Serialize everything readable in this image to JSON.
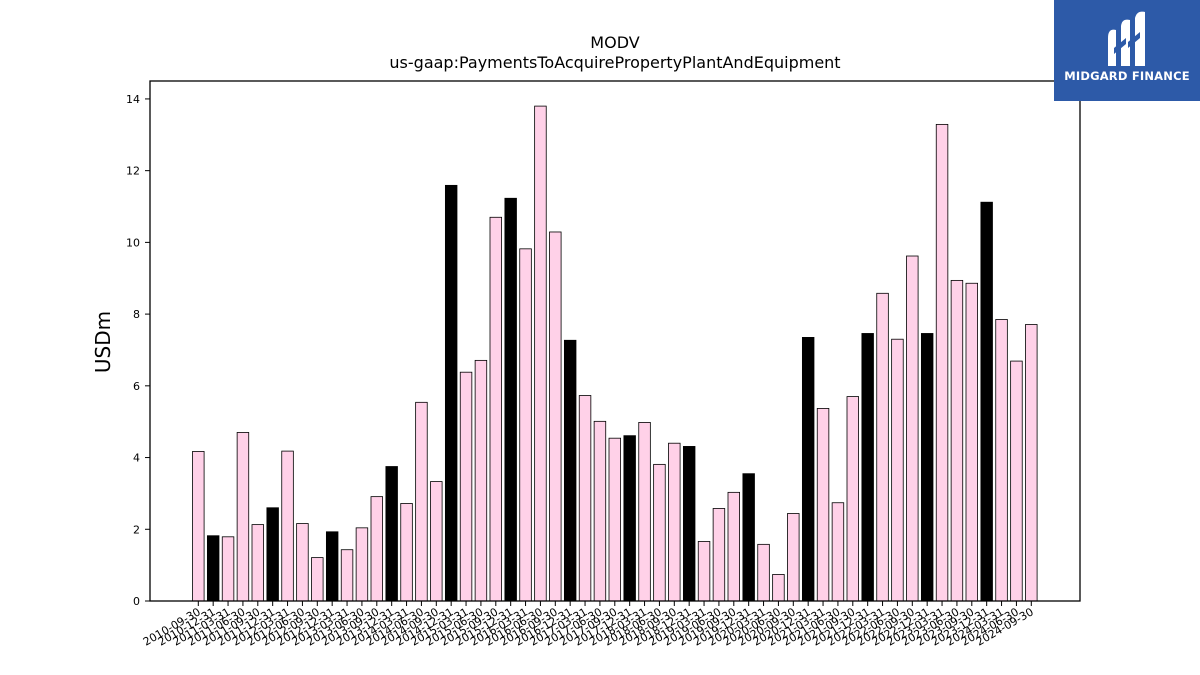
{
  "chart_data": {
    "type": "bar",
    "title": "MODV",
    "subtitle": "us-gaap:PaymentsToAcquirePropertyPlantAndEquipment",
    "xlabel": "",
    "ylabel": "USDm",
    "ylim": [
      0,
      14.5
    ],
    "yticks": [
      0,
      2,
      4,
      6,
      8,
      10,
      12,
      14
    ],
    "grid": false,
    "colors": {
      "quarter": "#ffd1e8",
      "annual": "#000000",
      "edge": "#000000"
    },
    "categories": [
      "2010-09-30",
      "2010-12-31",
      "2011-03-31",
      "2011-06-30",
      "2011-09-30",
      "2011-12-31",
      "2012-03-31",
      "2012-06-30",
      "2012-09-30",
      "2012-12-31",
      "2013-03-31",
      "2013-06-30",
      "2013-09-30",
      "2013-12-31",
      "2014-03-31",
      "2014-06-30",
      "2014-09-30",
      "2014-12-31",
      "2015-03-31",
      "2015-06-30",
      "2015-09-30",
      "2015-12-31",
      "2016-03-31",
      "2016-06-30",
      "2016-09-30",
      "2016-12-31",
      "2017-03-31",
      "2017-06-30",
      "2017-09-30",
      "2017-12-31",
      "2018-03-31",
      "2018-06-30",
      "2018-09-30",
      "2018-12-31",
      "2019-03-31",
      "2019-06-30",
      "2019-09-30",
      "2019-12-31",
      "2020-03-31",
      "2020-06-30",
      "2020-09-30",
      "2020-12-31",
      "2021-03-31",
      "2021-06-30",
      "2021-09-30",
      "2021-12-31",
      "2022-03-31",
      "2022-06-30",
      "2022-09-30",
      "2022-12-31",
      "2023-03-31",
      "2023-06-30",
      "2023-09-30",
      "2023-12-31",
      "2024-03-31",
      "2024-06-30",
      "2024-09-30"
    ],
    "values": [
      4.17,
      1.82,
      1.79,
      4.7,
      2.13,
      2.6,
      4.18,
      2.16,
      1.21,
      1.93,
      1.43,
      2.04,
      2.91,
      3.75,
      2.72,
      5.54,
      3.33,
      11.59,
      6.38,
      6.71,
      10.7,
      11.23,
      9.82,
      13.8,
      10.29,
      7.27,
      5.73,
      5.01,
      4.54,
      4.61,
      4.98,
      3.81,
      4.4,
      4.31,
      1.66,
      2.58,
      3.03,
      3.55,
      1.58,
      0.74,
      2.44,
      7.35,
      5.37,
      2.74,
      5.7,
      7.46,
      8.58,
      7.3,
      9.62,
      7.46,
      13.29,
      8.94,
      8.86,
      11.12,
      7.85,
      6.69,
      7.71
    ],
    "annual_flags": [
      false,
      true,
      false,
      false,
      false,
      true,
      false,
      false,
      false,
      true,
      false,
      false,
      false,
      true,
      false,
      false,
      false,
      true,
      false,
      false,
      false,
      true,
      false,
      false,
      false,
      true,
      false,
      false,
      false,
      true,
      false,
      false,
      false,
      true,
      false,
      false,
      false,
      true,
      false,
      false,
      false,
      true,
      false,
      false,
      false,
      true,
      false,
      false,
      false,
      true,
      false,
      false,
      false,
      true,
      false,
      false,
      false
    ]
  },
  "logo": {
    "brand": "MIDGARD FINANCE",
    "icon": "midgard-m-logo-icon"
  }
}
